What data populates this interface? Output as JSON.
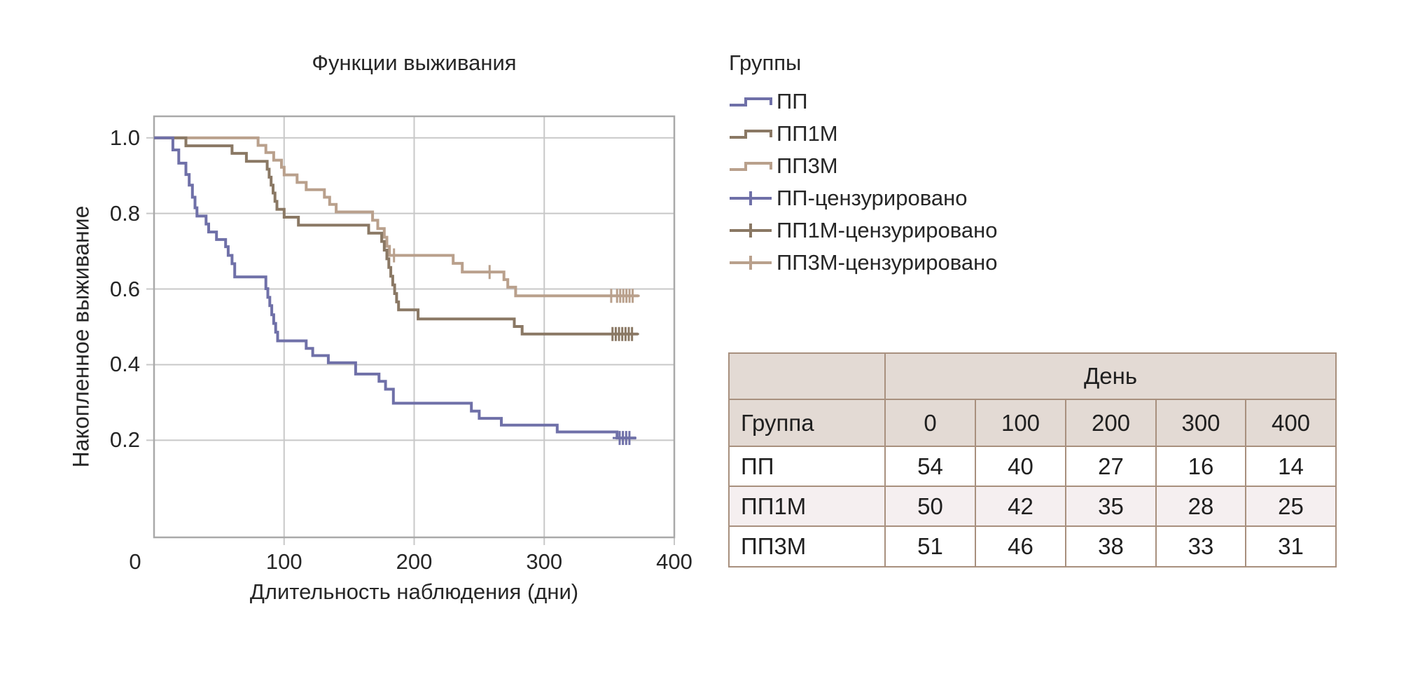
{
  "chart": {
    "title": "Функции выживания",
    "x_axis_label": "Длительность наблюдения (дни)",
    "y_axis_label": "Накопленное выживание"
  },
  "chart_data": {
    "type": "line",
    "subtype": "kaplan-meier-step",
    "title": "Функции выживания",
    "xlabel": "Длительность наблюдения (дни)",
    "ylabel": "Накопленное выживание",
    "xlim": [
      0,
      400
    ],
    "ylim": [
      -0.057,
      1.057
    ],
    "x_ticks": [
      0,
      100,
      200,
      300,
      400
    ],
    "y_ticks": [
      0.2,
      0.4,
      0.6,
      0.8,
      1.0
    ],
    "grid": true,
    "legend_position": "right",
    "series": [
      {
        "name": "ПП",
        "color": "#6f70a8",
        "start_day": 0,
        "start_value": 1.0,
        "end_day": 370.5,
        "steps": [
          [
            14.5,
            0.968
          ],
          [
            19,
            0.933
          ],
          [
            24.5,
            0.903
          ],
          [
            27,
            0.875
          ],
          [
            29.5,
            0.843
          ],
          [
            31.5,
            0.815
          ],
          [
            33,
            0.793
          ],
          [
            40,
            0.772
          ],
          [
            42,
            0.751
          ],
          [
            48,
            0.731
          ],
          [
            55,
            0.712
          ],
          [
            57,
            0.689
          ],
          [
            60,
            0.667
          ],
          [
            62,
            0.632
          ],
          [
            86,
            0.601
          ],
          [
            87.5,
            0.578
          ],
          [
            89,
            0.556
          ],
          [
            90.5,
            0.532
          ],
          [
            92,
            0.509
          ],
          [
            93.5,
            0.486
          ],
          [
            95,
            0.463
          ],
          [
            117,
            0.443
          ],
          [
            122,
            0.424
          ],
          [
            134,
            0.405
          ],
          [
            155,
            0.375
          ],
          [
            173,
            0.356
          ],
          [
            178,
            0.335
          ],
          [
            184,
            0.298
          ],
          [
            244,
            0.277
          ],
          [
            250,
            0.258
          ],
          [
            267,
            0.24
          ],
          [
            310,
            0.222
          ],
          [
            356,
            0.206
          ]
        ],
        "censored": [
          [
            358,
            0.206
          ],
          [
            360.5,
            0.206
          ],
          [
            363,
            0.206
          ],
          [
            365.5,
            0.206
          ]
        ]
      },
      {
        "name": "ПП1М",
        "color": "#8a7864",
        "start_day": 0,
        "start_value": 1.0,
        "end_day": 372,
        "steps": [
          [
            24.5,
            0.979
          ],
          [
            60,
            0.959
          ],
          [
            71,
            0.938
          ],
          [
            87,
            0.917
          ],
          [
            88.5,
            0.896
          ],
          [
            90,
            0.875
          ],
          [
            91.5,
            0.854
          ],
          [
            93,
            0.832
          ],
          [
            94.5,
            0.811
          ],
          [
            100,
            0.79
          ],
          [
            111,
            0.769
          ],
          [
            165,
            0.748
          ],
          [
            175,
            0.726
          ],
          [
            177,
            0.703
          ],
          [
            179,
            0.68
          ],
          [
            180.5,
            0.657
          ],
          [
            182,
            0.634
          ],
          [
            183.5,
            0.611
          ],
          [
            185,
            0.588
          ],
          [
            186.5,
            0.566
          ],
          [
            188,
            0.545
          ],
          [
            203,
            0.521
          ],
          [
            277,
            0.501
          ],
          [
            283,
            0.481
          ]
        ],
        "censored": [
          [
            352.5,
            0.481
          ],
          [
            355,
            0.481
          ],
          [
            357.5,
            0.481
          ],
          [
            360,
            0.481
          ],
          [
            362.5,
            0.481
          ],
          [
            365,
            0.481
          ],
          [
            367.5,
            0.481
          ]
        ]
      },
      {
        "name": "ПП3М",
        "color": "#b9a08c",
        "start_day": 0,
        "start_value": 1.0,
        "end_day": 372.5,
        "steps": [
          [
            80,
            0.98
          ],
          [
            86,
            0.961
          ],
          [
            92,
            0.941
          ],
          [
            98,
            0.922
          ],
          [
            100,
            0.902
          ],
          [
            110,
            0.882
          ],
          [
            117,
            0.863
          ],
          [
            131,
            0.843
          ],
          [
            135,
            0.824
          ],
          [
            140,
            0.804
          ],
          [
            168,
            0.782
          ],
          [
            172,
            0.76
          ],
          [
            177,
            0.737
          ],
          [
            179,
            0.713
          ],
          [
            181,
            0.689
          ],
          [
            230,
            0.668
          ],
          [
            237,
            0.645
          ],
          [
            269,
            0.625
          ],
          [
            272,
            0.605
          ],
          [
            278,
            0.582
          ]
        ],
        "censored": [
          [
            184.5,
            0.689
          ],
          [
            258,
            0.645
          ],
          [
            351.5,
            0.582
          ],
          [
            356,
            0.582
          ],
          [
            358.4,
            0.582
          ],
          [
            360.8,
            0.582
          ],
          [
            363.2,
            0.582
          ],
          [
            365.6,
            0.582
          ],
          [
            368,
            0.582
          ]
        ]
      }
    ]
  },
  "legend": {
    "title": "Группы",
    "items": [
      {
        "label": "ПП",
        "color": "#6f70a8",
        "symbol": "step"
      },
      {
        "label": "ПП1М",
        "color": "#8a7864",
        "symbol": "step"
      },
      {
        "label": "ПП3М",
        "color": "#b9a08c",
        "symbol": "step"
      },
      {
        "label": "ПП-цензурировано",
        "color": "#6f70a8",
        "symbol": "censored"
      },
      {
        "label": "ПП1М-цензурировано",
        "color": "#8a7864",
        "symbol": "censored"
      },
      {
        "label": "ПП3М-цензурировано",
        "color": "#b9a08c",
        "symbol": "censored"
      }
    ]
  },
  "table": {
    "span_header": "День",
    "group_header": "Группа",
    "day_columns": [
      "0",
      "100",
      "200",
      "300",
      "400"
    ],
    "rows": [
      {
        "group": "ПП",
        "values": [
          "54",
          "40",
          "27",
          "16",
          "14"
        ]
      },
      {
        "group": "ПП1М",
        "values": [
          "50",
          "42",
          "35",
          "28",
          "25"
        ]
      },
      {
        "group": "ПП3М",
        "values": [
          "51",
          "46",
          "38",
          "33",
          "31"
        ]
      }
    ],
    "colors": {
      "header_bg": "#e3dad4",
      "row_bg": "#ffffff",
      "row_alt_bg": "#f5eff0",
      "border": "#a8907e",
      "text": "#1f1f1f"
    }
  },
  "plot_colors": {
    "grid": "#c8c8c8",
    "frame": "#a9a9a9",
    "text": "#262626"
  }
}
